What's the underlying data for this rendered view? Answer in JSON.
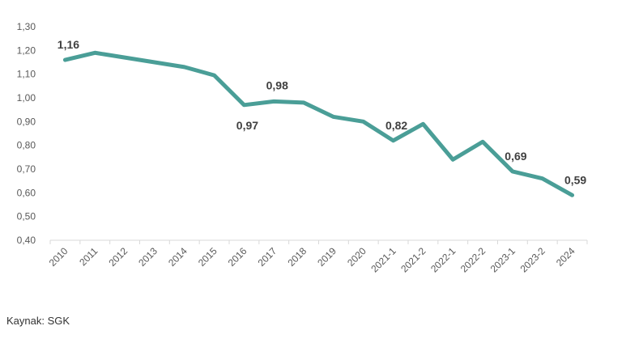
{
  "chart_data": {
    "type": "line",
    "title": "",
    "xlabel": "",
    "ylabel": "",
    "ylim": [
      0.4,
      1.3
    ],
    "yticks": [
      "0,40",
      "0,50",
      "0,60",
      "0,70",
      "0,80",
      "0,90",
      "1,00",
      "1,10",
      "1,20",
      "1,30"
    ],
    "grid": false,
    "legend": "none",
    "line_color": "#4a9e97",
    "categories": [
      "2010",
      "2011",
      "2012",
      "2013",
      "2014",
      "2015",
      "2016",
      "2017",
      "2018",
      "2019",
      "2020",
      "2021-1",
      "2021-2",
      "2022-1",
      "2022-2",
      "2023-1",
      "2023-2",
      "2024"
    ],
    "series": [
      {
        "name": "",
        "values": [
          1.16,
          1.19,
          1.17,
          1.15,
          1.13,
          1.095,
          0.97,
          0.985,
          0.98,
          0.92,
          0.9,
          0.82,
          0.89,
          0.74,
          0.815,
          0.69,
          0.66,
          0.59
        ]
      }
    ],
    "annotations": [
      {
        "index": 0,
        "label": "1,16",
        "position": "above"
      },
      {
        "index": 6,
        "label": "0,97",
        "position": "below"
      },
      {
        "index": 7,
        "label": "0,98",
        "position": "above-right"
      },
      {
        "index": 11,
        "label": "0,82",
        "position": "above"
      },
      {
        "index": 15,
        "label": "0,69",
        "position": "above"
      },
      {
        "index": 17,
        "label": "0,59",
        "position": "above"
      }
    ]
  },
  "source": "Kaynak: SGK"
}
